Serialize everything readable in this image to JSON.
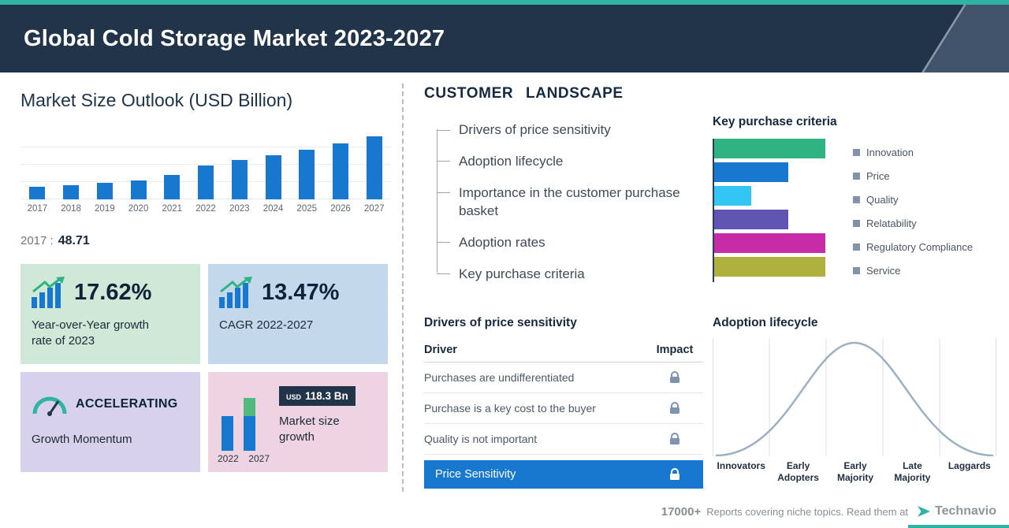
{
  "colors": {
    "accent_teal": "#2fb3a3",
    "header_navy": "#22344a",
    "bar_blue": "#1878cf",
    "card_green": "#cfe8d8",
    "card_blue": "#c3d8eb",
    "card_purple": "#d7d1ec",
    "card_pink": "#eed3e3",
    "highlight_row_blue": "#1878cf"
  },
  "header": {
    "title": "Global Cold Storage Market 2023-2027"
  },
  "market_outlook": {
    "title": "Market Size Outlook (USD Billion)",
    "base_year_label": "2017 :",
    "base_year_value": "48.71",
    "cards": {
      "yoy": {
        "value": "17.62%",
        "label": "Year-over-Year growth rate of 2023"
      },
      "cagr": {
        "value": "13.47%",
        "label": "CAGR 2022-2027"
      },
      "momentum": {
        "value": "ACCELERATING",
        "label": "Growth Momentum"
      },
      "growth": {
        "badge_currency": "USD",
        "badge_value": "118.3 Bn",
        "label": "Market size growth",
        "year_start": "2022",
        "year_end": "2027"
      }
    }
  },
  "customer_landscape": {
    "title": "CUSTOMER LANDSCAPE",
    "items": [
      "Drivers of price sensitivity",
      "Adoption lifecycle",
      "Importance in the customer purchase basket",
      "Adoption rates",
      "Key purchase criteria"
    ]
  },
  "key_purchase_criteria": {
    "title": "Key purchase criteria",
    "legend": [
      "Innovation",
      "Price",
      "Quality",
      "Relatability",
      "Regulatory Compliance",
      "Service"
    ]
  },
  "price_sensitivity": {
    "title": "Drivers of price sensitivity",
    "columns": {
      "driver": "Driver",
      "impact": "Impact"
    },
    "rows": [
      "Purchases are undifferentiated",
      "Purchase is a key cost to the buyer",
      "Quality is not important"
    ],
    "highlight_row": "Price Sensitivity"
  },
  "adoption_lifecycle": {
    "title": "Adoption lifecycle",
    "stages": [
      "Innovators",
      "Early Adopters",
      "Early Majority",
      "Late Majority",
      "Laggards"
    ]
  },
  "footer": {
    "count": "17000+",
    "text": "Reports covering niche topics. Read them at",
    "brand": "Technavio"
  },
  "chart_data": [
    {
      "id": "market-size-bars",
      "type": "bar",
      "title": "Market Size Outlook (USD Billion)",
      "categories": [
        "2017",
        "2018",
        "2019",
        "2020",
        "2021",
        "2022",
        "2023",
        "2024",
        "2025",
        "2026",
        "2027"
      ],
      "values": [
        48.71,
        56,
        65,
        76,
        97,
        134.4,
        158.1,
        177,
        199,
        224,
        252.7
      ],
      "value_note": "Only 2017 (48.71) is labeled in the image; later values estimated from bar heights consistent with 17.62% YoY growth in 2023 and 13.47% CAGR 2022-2027",
      "ylim": [
        0,
        270
      ],
      "bar_color": "#1878cf",
      "grid": true
    },
    {
      "id": "key-purchase-criteria",
      "type": "bar",
      "orientation": "horizontal",
      "categories": [
        "Innovation",
        "Price",
        "Quality",
        "Relatability",
        "Regulatory Compliance",
        "Service"
      ],
      "values": [
        3,
        2,
        1,
        2,
        3,
        3
      ],
      "value_note": "Relative bar lengths; no numeric axis shown",
      "xlim": [
        0,
        3.4
      ],
      "colors": [
        "#2fb383",
        "#1878cf",
        "#33c5f3",
        "#6155b4",
        "#c62ba8",
        "#b0b03c"
      ],
      "legend_position": "right"
    },
    {
      "id": "adoption-lifecycle-curve",
      "type": "line",
      "shape": "bell curve",
      "categories": [
        "Innovators",
        "Early Adopters",
        "Early Majority",
        "Late Majority",
        "Laggards"
      ],
      "value_note": "Qualitative adoption bell curve peaking at Early Majority"
    }
  ]
}
